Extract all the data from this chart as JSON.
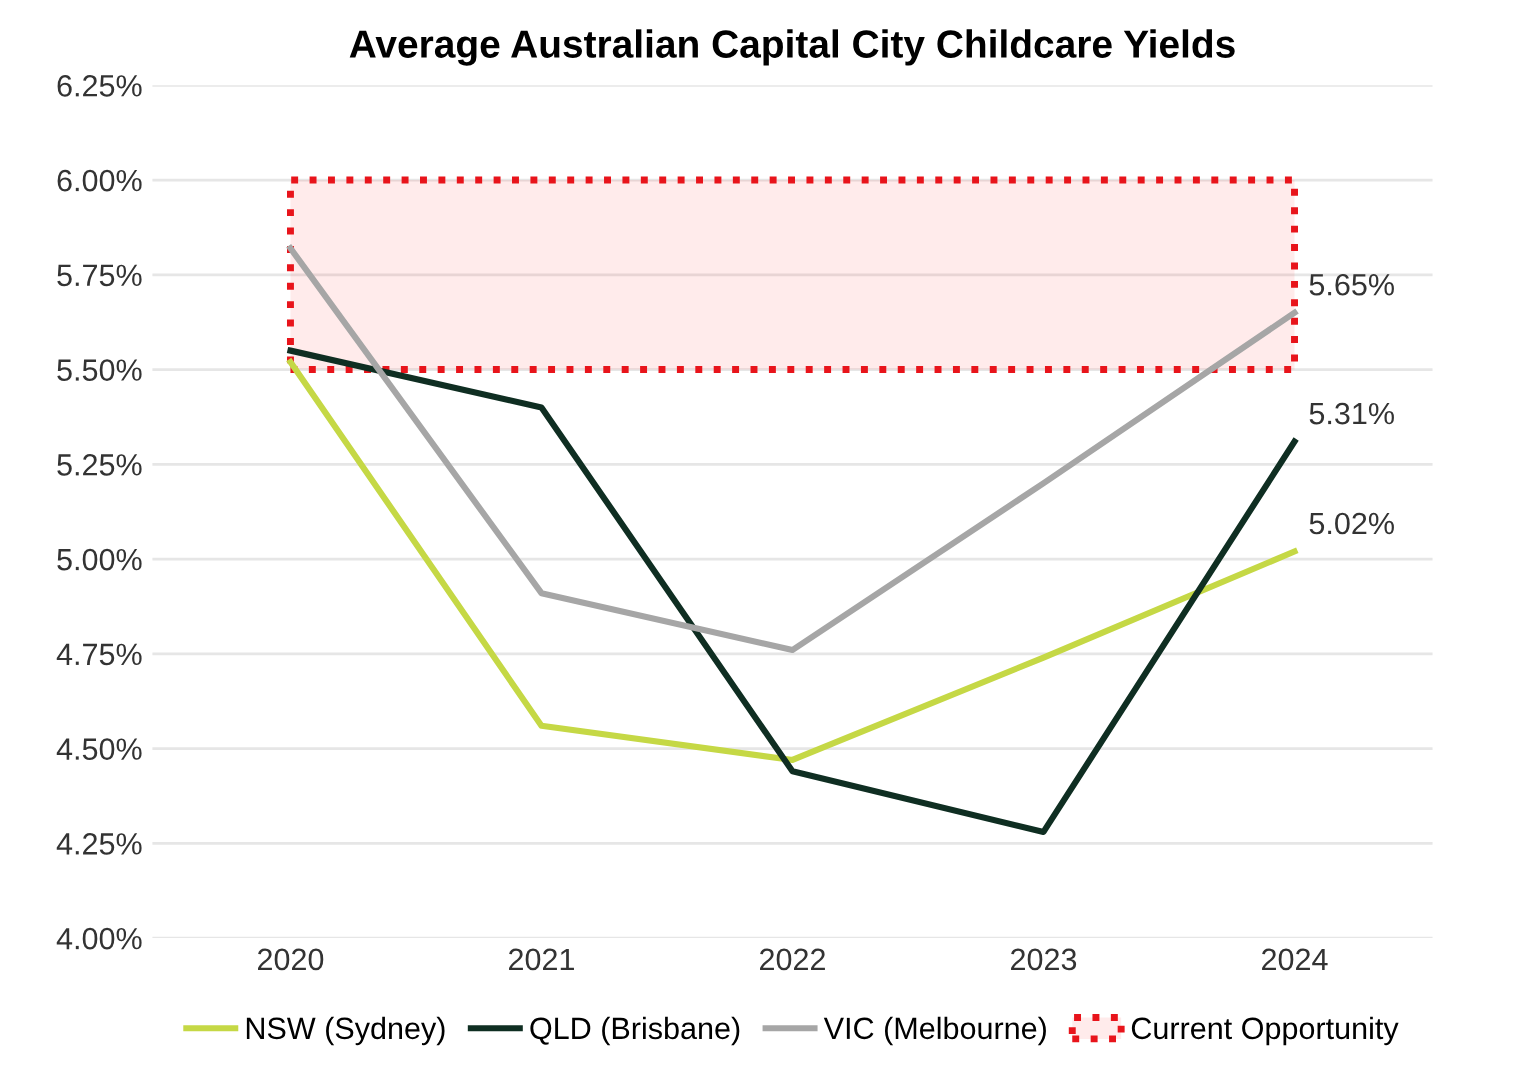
{
  "chart_data": {
    "type": "line",
    "title": "Average Australian Capital City Childcare Yields",
    "categories": [
      "2020",
      "2021",
      "2022",
      "2023",
      "2024"
    ],
    "series": [
      {
        "name": "NSW (Sydney)",
        "color": "#c5d845",
        "values": [
          5.52,
          4.56,
          4.47,
          4.74,
          5.02
        ],
        "value_labels": [
          null,
          null,
          null,
          null,
          "5.02%"
        ]
      },
      {
        "name": "QLD (Brisbane)",
        "color": "#0f2e22",
        "values": [
          5.55,
          5.4,
          4.44,
          4.28,
          5.31
        ],
        "value_labels": [
          null,
          null,
          null,
          null,
          "5.31%"
        ]
      },
      {
        "name": "VIC (Melbourne)",
        "color": "#a6a6a6",
        "values": [
          5.82,
          4.91,
          4.76,
          5.2,
          5.65
        ],
        "value_labels": [
          null,
          null,
          null,
          null,
          "5.65%"
        ]
      }
    ],
    "bands": [
      {
        "axis": "y",
        "from": 5.5,
        "to": 6.0,
        "label": "Current Opportunity",
        "color": "#e8141b"
      }
    ],
    "ylim": [
      4.0,
      6.25
    ],
    "yticks": [
      {
        "value": 4.0,
        "label": "4.00%"
      },
      {
        "value": 4.25,
        "label": "4.25%"
      },
      {
        "value": 4.5,
        "label": "4.50%"
      },
      {
        "value": 4.75,
        "label": "4.75%"
      },
      {
        "value": 5.0,
        "label": "5.00%"
      },
      {
        "value": 5.25,
        "label": "5.25%"
      },
      {
        "value": 5.5,
        "label": "5.50%"
      },
      {
        "value": 5.75,
        "label": "5.75%"
      },
      {
        "value": 6.0,
        "label": "6.00%"
      },
      {
        "value": 6.25,
        "label": "6.25%"
      }
    ],
    "grid": "y",
    "legend": "bottom",
    "marker": "none",
    "line_style": "solid"
  }
}
